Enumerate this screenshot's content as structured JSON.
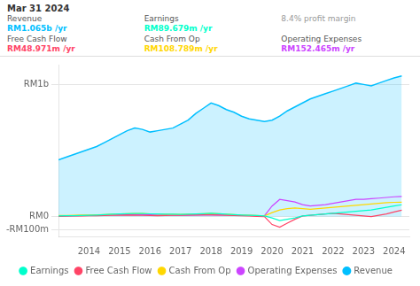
{
  "chart_data": {
    "type": "line",
    "x": [
      2013.0,
      2013.25,
      2013.5,
      2013.75,
      2014.0,
      2014.25,
      2014.5,
      2014.75,
      2015.0,
      2015.25,
      2015.5,
      2015.75,
      2016.0,
      2016.25,
      2016.5,
      2016.75,
      2017.0,
      2017.25,
      2017.5,
      2017.75,
      2018.0,
      2018.25,
      2018.5,
      2018.75,
      2019.0,
      2019.25,
      2019.5,
      2019.75,
      2020.0,
      2020.25,
      2020.5,
      2020.75,
      2021.0,
      2021.25,
      2021.5,
      2021.75,
      2022.0,
      2022.25,
      2022.5,
      2022.75,
      2023.0,
      2023.25,
      2023.5,
      2023.75,
      2024.0,
      2024.25
    ],
    "series": [
      {
        "name": "Revenue",
        "color": "#00bfff",
        "type": "area",
        "values": [
          430,
          450,
          470,
          490,
          510,
          530,
          560,
          590,
          620,
          650,
          670,
          660,
          640,
          650,
          660,
          670,
          700,
          730,
          780,
          820,
          860,
          840,
          810,
          790,
          760,
          740,
          730,
          720,
          730,
          760,
          800,
          830,
          860,
          890,
          910,
          930,
          950,
          970,
          990,
          1010,
          1000,
          990,
          1010,
          1030,
          1050,
          1065
        ]
      },
      {
        "name": "Earnings",
        "color": "#00ffcc",
        "type": "line",
        "values": [
          5,
          6,
          7,
          8,
          10,
          12,
          15,
          18,
          20,
          22,
          24,
          23,
          21,
          20,
          19,
          18,
          17,
          18,
          20,
          22,
          25,
          22,
          18,
          15,
          12,
          10,
          8,
          5,
          -10,
          -30,
          -20,
          -10,
          5,
          10,
          15,
          20,
          25,
          30,
          35,
          40,
          45,
          50,
          60,
          70,
          80,
          89.679
        ]
      },
      {
        "name": "Free Cash Flow",
        "color": "#ff4466",
        "type": "line",
        "values": [
          2,
          3,
          4,
          5,
          6,
          7,
          8,
          9,
          10,
          11,
          10,
          9,
          8,
          7,
          8,
          9,
          10,
          11,
          12,
          13,
          14,
          12,
          10,
          8,
          6,
          4,
          2,
          0,
          -60,
          -80,
          -50,
          -20,
          5,
          10,
          15,
          20,
          25,
          20,
          15,
          10,
          5,
          0,
          10,
          20,
          35,
          48.971
        ]
      },
      {
        "name": "Cash From Op",
        "color": "#ffd700",
        "type": "line",
        "values": [
          8,
          9,
          10,
          11,
          12,
          14,
          16,
          18,
          20,
          22,
          24,
          23,
          21,
          20,
          19,
          18,
          17,
          18,
          20,
          22,
          25,
          22,
          18,
          15,
          12,
          10,
          8,
          5,
          30,
          50,
          60,
          65,
          60,
          55,
          60,
          65,
          70,
          75,
          80,
          85,
          90,
          95,
          100,
          105,
          108,
          108.789
        ]
      },
      {
        "name": "Operating Expenses",
        "color": "#cc44ff",
        "type": "line",
        "values": [
          5,
          6,
          7,
          8,
          9,
          10,
          11,
          12,
          13,
          14,
          15,
          14,
          13,
          12,
          11,
          10,
          9,
          10,
          11,
          12,
          13,
          12,
          11,
          10,
          9,
          8,
          7,
          6,
          80,
          130,
          120,
          110,
          90,
          80,
          85,
          90,
          100,
          110,
          120,
          130,
          130,
          135,
          140,
          145,
          150,
          152.465
        ]
      }
    ],
    "xlim": [
      2013.0,
      2024.5
    ],
    "xticks": [
      2014,
      2015,
      2016,
      2017,
      2018,
      2019,
      2020,
      2021,
      2022,
      2023,
      2024
    ],
    "ylim": [
      -150,
      1150
    ],
    "yticks": [
      {
        "value": -100,
        "label": "-RM100m"
      },
      {
        "value": 0,
        "label": "RM0"
      },
      {
        "value": 1000,
        "label": "RM1b"
      }
    ],
    "grid": true,
    "legend": "bottom",
    "annotations": [
      {
        "title": "Mar 31 2024",
        "rows": [
          {
            "label": "Revenue",
            "text": "RM1.065b /yr",
            "color": "#00bfff"
          },
          {
            "label": "Earnings",
            "text": "RM89.679m /yr",
            "color": "#00ffcc"
          },
          {
            "text": "8.4% profit margin",
            "color": "#999999"
          },
          {
            "label": "Free Cash Flow",
            "text": "RM48.971m /yr",
            "color": "#ff4466"
          },
          {
            "label": "Cash From Op",
            "text": "RM108.789m /yr",
            "color": "#ffd700"
          },
          {
            "label": "Operating Expenses",
            "text": "RM152.465m /yr",
            "color": "#cc44ff"
          }
        ]
      }
    ]
  }
}
